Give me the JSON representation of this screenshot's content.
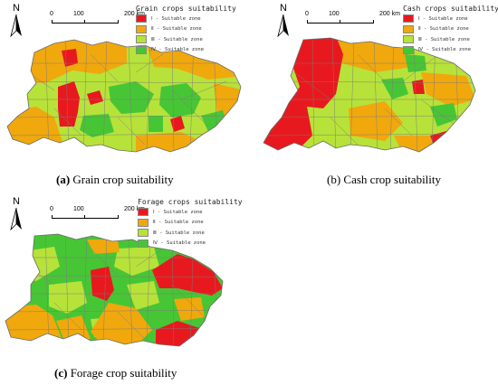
{
  "colors": {
    "zone1": "#e8191e",
    "zone2": "#f0a80d",
    "zone3": "#b7e23a",
    "zone4": "#46c635",
    "boundary": "#7a7a7a"
  },
  "north_label": "N",
  "scale": {
    "t0": "0",
    "t100": "100",
    "t200": "200 km"
  },
  "zone_labels": [
    "Ⅰ - Suitable zone",
    "Ⅱ - Suitable zone",
    "Ⅲ - Suitable zone",
    "Ⅳ - Suitable zone"
  ],
  "panels": [
    {
      "id": "a",
      "legend_title": "Grain crops suitability",
      "caption_letter": "(a)",
      "caption_rest": " Grain crop suitability"
    },
    {
      "id": "b",
      "legend_title": "Cash crops suitability",
      "caption_letter": "(b)",
      "caption_rest": " Cash crop suitability"
    },
    {
      "id": "c",
      "legend_title": "Forage crops suitability",
      "caption_letter": "(c)",
      "caption_rest": " Forage crop suitability"
    }
  ]
}
